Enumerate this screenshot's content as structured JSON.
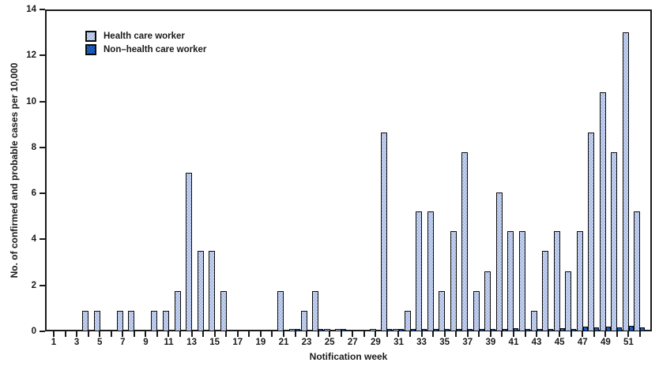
{
  "figure": {
    "ylabel": "No. of confirmed and probable cases per 10,000",
    "xlabel": "Notification week",
    "legend": [
      {
        "label": "Health care worker",
        "color": "#b8c7e9"
      },
      {
        "label": "Non–health care worker",
        "color": "#2268d4"
      }
    ]
  },
  "chart_data": {
    "type": "bar",
    "title": "",
    "xlabel": "Notification week",
    "ylabel": "No. of confirmed and probable cases per 10,000",
    "ylim": [
      0,
      14
    ],
    "yticks": [
      0,
      2,
      4,
      6,
      8,
      10,
      12,
      14
    ],
    "xticks_every_week": true,
    "xtick_labels": [
      "1",
      "3",
      "5",
      "7",
      "9",
      "11",
      "13",
      "15",
      "17",
      "19",
      "21",
      "23",
      "25",
      "27",
      "29",
      "31",
      "33",
      "35",
      "37",
      "39",
      "41",
      "43",
      "45",
      "47",
      "49",
      "51"
    ],
    "grid": false,
    "legend_position": "top-left-inside",
    "categories": [
      1,
      2,
      3,
      4,
      5,
      6,
      7,
      8,
      9,
      10,
      11,
      12,
      13,
      14,
      15,
      16,
      17,
      18,
      19,
      20,
      21,
      22,
      23,
      24,
      25,
      26,
      27,
      28,
      29,
      30,
      31,
      32,
      33,
      34,
      35,
      36,
      37,
      38,
      39,
      40,
      41,
      42,
      43,
      44,
      45,
      46,
      47,
      48,
      49,
      50,
      51,
      52
    ],
    "series": [
      {
        "name": "Health care worker",
        "color": "#b8c7e9",
        "values": [
          0,
          0,
          0,
          0.9,
          0.9,
          0,
          0.9,
          0.9,
          0,
          0.9,
          0.9,
          1.75,
          6.9,
          3.5,
          3.5,
          1.75,
          0,
          0,
          0,
          0,
          1.75,
          0.1,
          0.9,
          1.75,
          0.08,
          0.1,
          0,
          0,
          0.08,
          8.65,
          0.1,
          0.9,
          5.2,
          5.2,
          1.75,
          4.35,
          7.8,
          1.75,
          2.6,
          6.05,
          4.35,
          4.35,
          0.9,
          3.5,
          4.35,
          2.6,
          4.35,
          8.65,
          10.4,
          7.8,
          13.0,
          5.2
        ]
      },
      {
        "name": "Non–health care worker",
        "color": "#2268d4",
        "values": [
          0,
          0,
          0,
          0,
          0,
          0,
          0,
          0,
          0,
          0,
          0,
          0,
          0,
          0,
          0,
          0,
          0,
          0,
          0,
          0,
          0,
          0.05,
          0,
          0.05,
          0,
          0.05,
          0,
          0,
          0,
          0.1,
          0.05,
          0.05,
          0.07,
          0.07,
          0.1,
          0.1,
          0.1,
          0.1,
          0.12,
          0.12,
          0.15,
          0.1,
          0.1,
          0.1,
          0.15,
          0.12,
          0.2,
          0.17,
          0.2,
          0.17,
          0.25,
          0.17
        ]
      }
    ]
  }
}
